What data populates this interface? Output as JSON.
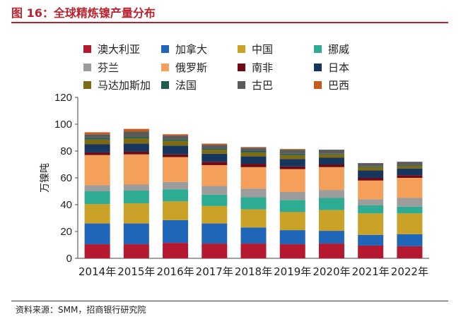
{
  "header": {
    "title": "图 16：全球精炼镍产量分布"
  },
  "footer": {
    "source": "资料来源：SMM，招商银行研究院"
  },
  "chart_data": {
    "type": "bar",
    "stacked": true,
    "title": "图 16：全球精炼镍产量分布",
    "xlabel": "",
    "ylabel": "万镍吨",
    "ylim": [
      0,
      120
    ],
    "yticks": [
      0,
      20,
      40,
      60,
      80,
      100,
      120
    ],
    "grid": false,
    "legend_position": "top",
    "categories": [
      "2014年",
      "2015年",
      "2016年",
      "2017年",
      "2018年",
      "2019年",
      "2020年",
      "2021年",
      "2022年"
    ],
    "series": [
      {
        "name": "澳大利亚",
        "color": "#b5192f",
        "values": [
          10.5,
          10.5,
          11.5,
          11.0,
          11.0,
          10.5,
          11.0,
          9.5,
          9.0
        ]
      },
      {
        "name": "加拿大",
        "color": "#1f66b8",
        "values": [
          15.5,
          15.5,
          17.0,
          15.0,
          12.0,
          10.5,
          9.5,
          8.0,
          9.0
        ]
      },
      {
        "name": "中国",
        "color": "#c9a227",
        "values": [
          14.5,
          15.0,
          14.0,
          13.0,
          13.5,
          13.5,
          15.5,
          16.0,
          15.5
        ]
      },
      {
        "name": "挪威",
        "color": "#2eab93",
        "values": [
          9.5,
          9.5,
          9.0,
          8.5,
          9.0,
          9.0,
          9.0,
          6.0,
          5.0
        ]
      },
      {
        "name": "芬兰",
        "color": "#9c9c9c",
        "values": [
          4.5,
          4.5,
          5.5,
          6.5,
          6.5,
          6.0,
          6.0,
          4.5,
          6.5
        ]
      },
      {
        "name": "俄罗斯",
        "color": "#f5a05a",
        "values": [
          22.5,
          22.5,
          18.5,
          15.5,
          16.0,
          17.0,
          17.0,
          14.0,
          15.0
        ]
      },
      {
        "name": "南非",
        "color": "#6e0a14",
        "values": [
          2.0,
          2.0,
          2.0,
          2.5,
          2.5,
          2.0,
          2.0,
          2.0,
          2.0
        ]
      },
      {
        "name": "日本",
        "color": "#17365d",
        "values": [
          6.0,
          6.0,
          6.5,
          6.0,
          5.5,
          5.5,
          5.0,
          5.5,
          5.0
        ]
      },
      {
        "name": "马达加斯加",
        "color": "#7d6a12",
        "values": [
          3.5,
          4.0,
          3.5,
          3.0,
          3.0,
          3.0,
          2.5,
          2.5,
          2.0
        ]
      },
      {
        "name": "法国",
        "color": "#1f5c4f",
        "values": [
          1.0,
          1.0,
          1.0,
          1.0,
          1.0,
          1.0,
          0.5,
          0.5,
          0.5
        ]
      },
      {
        "name": "古巴",
        "color": "#5a5a5a",
        "values": [
          3.0,
          4.0,
          3.0,
          2.5,
          2.5,
          3.0,
          3.0,
          2.5,
          2.5
        ]
      },
      {
        "name": "巴西",
        "color": "#c85a1e",
        "values": [
          1.5,
          2.0,
          1.0,
          1.0,
          0.5,
          0.5,
          0.0,
          0.0,
          0.0
        ]
      }
    ]
  }
}
